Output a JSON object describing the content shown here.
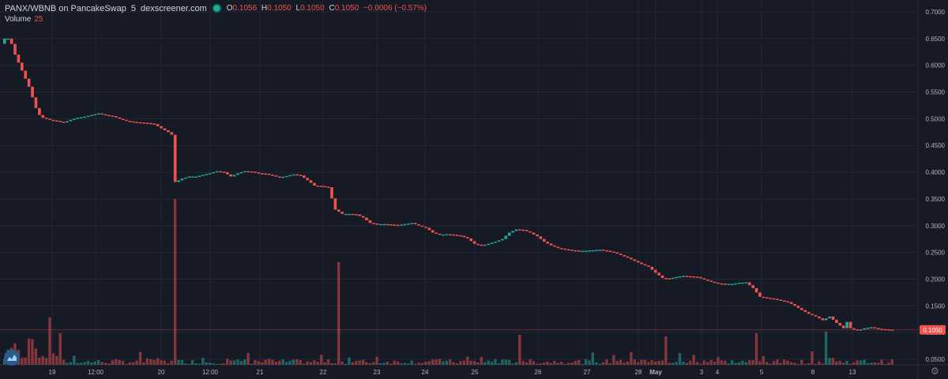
{
  "header": {
    "symbol": "PANX/WBNB on PancakeSwap",
    "interval": "5",
    "source": "dexscreener.com",
    "ohlc": {
      "open_label": "O",
      "open": "0.1056",
      "high_label": "H",
      "high": "0.1050",
      "low_label": "L",
      "low": "0.1050",
      "close_label": "C",
      "close": "0.1050",
      "change": "−0.0006 (−0.57%)"
    },
    "volume_label": "Volume",
    "volume_value": "25"
  },
  "colors": {
    "background": "#161a25",
    "grid": "#232736",
    "up": "#26a69a",
    "down": "#ef5350",
    "text": "#b2b5be",
    "price_tag": "#ef5350"
  },
  "icons": [
    "dexscreener-logo-icon",
    "settings-gear-icon"
  ],
  "chart_data": {
    "type": "candlestick",
    "title": "PANX/WBNB on PancakeSwap",
    "ylim": [
      0.04,
      0.71
    ],
    "y_ticks": [
      "0.7000",
      "0.6500",
      "0.6000",
      "0.5500",
      "0.5000",
      "0.4500",
      "0.4000",
      "0.3500",
      "0.3000",
      "0.2500",
      "0.2000",
      "0.1500",
      "0.1000",
      "0.0500"
    ],
    "x_ticks": [
      "19",
      "12:00",
      "20",
      "12:00",
      "21",
      "22",
      "23",
      "24",
      "25",
      "26",
      "27",
      "28",
      "May",
      "3",
      "4",
      "5",
      "8",
      "13"
    ],
    "last_price": "0.1050",
    "price_path": [
      [
        0,
        0.64
      ],
      [
        1,
        0.65
      ],
      [
        1.5,
        0.655
      ],
      [
        2,
        0.65
      ],
      [
        3,
        0.64
      ],
      [
        4,
        0.62
      ],
      [
        5,
        0.605
      ],
      [
        6,
        0.59
      ],
      [
        7,
        0.575
      ],
      [
        8,
        0.56
      ],
      [
        9,
        0.54
      ],
      [
        10,
        0.52
      ],
      [
        11,
        0.507
      ],
      [
        12,
        0.502
      ],
      [
        14,
        0.498
      ],
      [
        16,
        0.496
      ],
      [
        18,
        0.493
      ],
      [
        20,
        0.498
      ],
      [
        22,
        0.502
      ],
      [
        24,
        0.504
      ],
      [
        26,
        0.507
      ],
      [
        28,
        0.51
      ],
      [
        30,
        0.507
      ],
      [
        32,
        0.505
      ],
      [
        34,
        0.5
      ],
      [
        36,
        0.496
      ],
      [
        38,
        0.494
      ],
      [
        40,
        0.493
      ],
      [
        42,
        0.492
      ],
      [
        44,
        0.49
      ],
      [
        46,
        0.482
      ],
      [
        48,
        0.475
      ],
      [
        49,
        0.47
      ],
      [
        49.5,
        0.38
      ],
      [
        52,
        0.388
      ],
      [
        54,
        0.392
      ],
      [
        56,
        0.392
      ],
      [
        58,
        0.395
      ],
      [
        60,
        0.398
      ],
      [
        62,
        0.402
      ],
      [
        64,
        0.4
      ],
      [
        66,
        0.392
      ],
      [
        68,
        0.398
      ],
      [
        70,
        0.402
      ],
      [
        72,
        0.401
      ],
      [
        74,
        0.398
      ],
      [
        76,
        0.397
      ],
      [
        78,
        0.394
      ],
      [
        80,
        0.39
      ],
      [
        82,
        0.393
      ],
      [
        84,
        0.396
      ],
      [
        86,
        0.394
      ],
      [
        88,
        0.385
      ],
      [
        90,
        0.375
      ],
      [
        92,
        0.374
      ],
      [
        94,
        0.372
      ],
      [
        96,
        0.33
      ],
      [
        98,
        0.322
      ],
      [
        100,
        0.322
      ],
      [
        102,
        0.321
      ],
      [
        104,
        0.315
      ],
      [
        106,
        0.305
      ],
      [
        108,
        0.303
      ],
      [
        110,
        0.303
      ],
      [
        112,
        0.302
      ],
      [
        114,
        0.301
      ],
      [
        116,
        0.303
      ],
      [
        118,
        0.305
      ],
      [
        120,
        0.3
      ],
      [
        122,
        0.296
      ],
      [
        124,
        0.287
      ],
      [
        126,
        0.283
      ],
      [
        128,
        0.284
      ],
      [
        130,
        0.283
      ],
      [
        132,
        0.281
      ],
      [
        134,
        0.276
      ],
      [
        136,
        0.266
      ],
      [
        138,
        0.263
      ],
      [
        140,
        0.266
      ],
      [
        142,
        0.27
      ],
      [
        144,
        0.275
      ],
      [
        146,
        0.287
      ],
      [
        148,
        0.293
      ],
      [
        150,
        0.292
      ],
      [
        152,
        0.287
      ],
      [
        154,
        0.28
      ],
      [
        156,
        0.27
      ],
      [
        158,
        0.263
      ],
      [
        160,
        0.258
      ],
      [
        162,
        0.256
      ],
      [
        164,
        0.254
      ],
      [
        166,
        0.253
      ],
      [
        168,
        0.253
      ],
      [
        170,
        0.254
      ],
      [
        172,
        0.255
      ],
      [
        174,
        0.253
      ],
      [
        176,
        0.25
      ],
      [
        178,
        0.245
      ],
      [
        180,
        0.24
      ],
      [
        182,
        0.234
      ],
      [
        184,
        0.228
      ],
      [
        186,
        0.223
      ],
      [
        188,
        0.212
      ],
      [
        190,
        0.202
      ],
      [
        192,
        0.201
      ],
      [
        194,
        0.204
      ],
      [
        196,
        0.206
      ],
      [
        198,
        0.205
      ],
      [
        200,
        0.204
      ],
      [
        202,
        0.199
      ],
      [
        204,
        0.195
      ],
      [
        206,
        0.192
      ],
      [
        208,
        0.191
      ],
      [
        210,
        0.191
      ],
      [
        212,
        0.193
      ],
      [
        214,
        0.194
      ],
      [
        216,
        0.183
      ],
      [
        218,
        0.167
      ],
      [
        220,
        0.165
      ],
      [
        222,
        0.163
      ],
      [
        224,
        0.16
      ],
      [
        226,
        0.157
      ],
      [
        228,
        0.15
      ],
      [
        230,
        0.142
      ],
      [
        232,
        0.135
      ],
      [
        234,
        0.13
      ],
      [
        236,
        0.123
      ],
      [
        238,
        0.13
      ],
      [
        240,
        0.118
      ],
      [
        242,
        0.108
      ],
      [
        243,
        0.12
      ],
      [
        244,
        0.108
      ],
      [
        246,
        0.104
      ],
      [
        248,
        0.108
      ],
      [
        250,
        0.11
      ],
      [
        252,
        0.107
      ],
      [
        254,
        0.106
      ],
      [
        256,
        0.105
      ]
    ],
    "volume_spikes": [
      {
        "i": 13,
        "v": 60
      },
      {
        "i": 16,
        "v": 40
      },
      {
        "i": 49,
        "v": 210
      },
      {
        "i": 96,
        "v": 130
      },
      {
        "i": 148,
        "v": 38
      },
      {
        "i": 190,
        "v": 36
      },
      {
        "i": 216,
        "v": 40
      },
      {
        "i": 236,
        "v": 42
      }
    ]
  }
}
